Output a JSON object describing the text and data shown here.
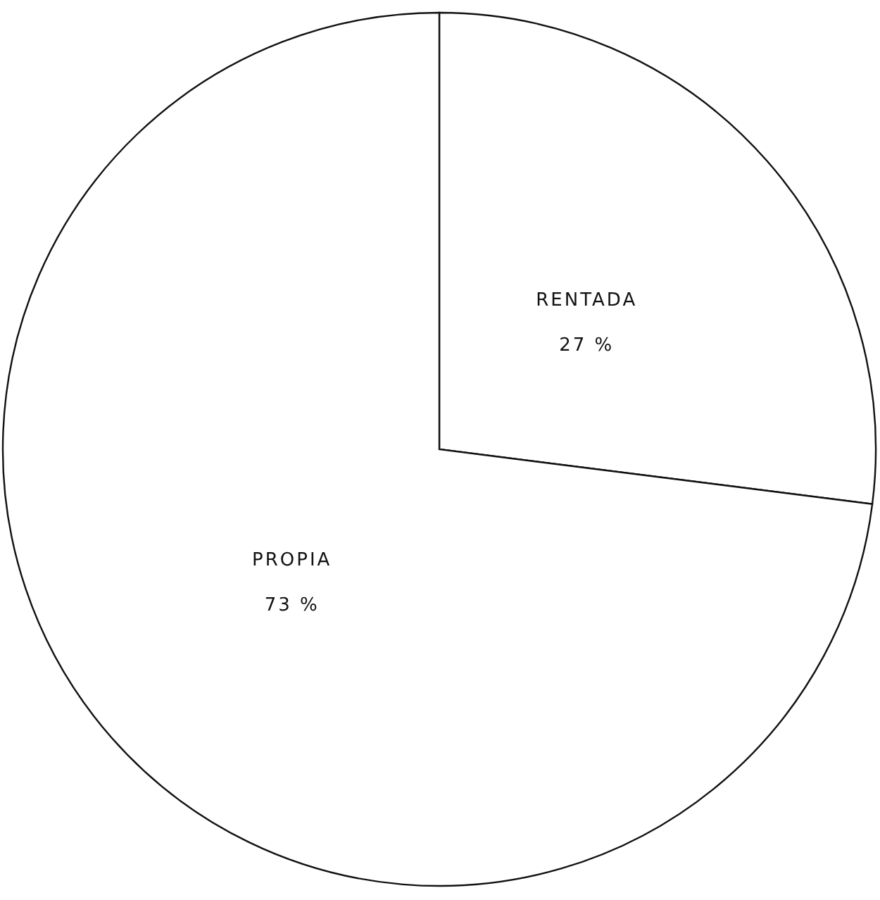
{
  "chart_data": {
    "type": "pie",
    "categories": [
      "RENTADA",
      "PROPIA"
    ],
    "values": [
      27,
      73
    ],
    "colors": [
      "#ffffff",
      "#ffffff"
    ],
    "value_labels": [
      "27 %",
      "73 %"
    ]
  }
}
